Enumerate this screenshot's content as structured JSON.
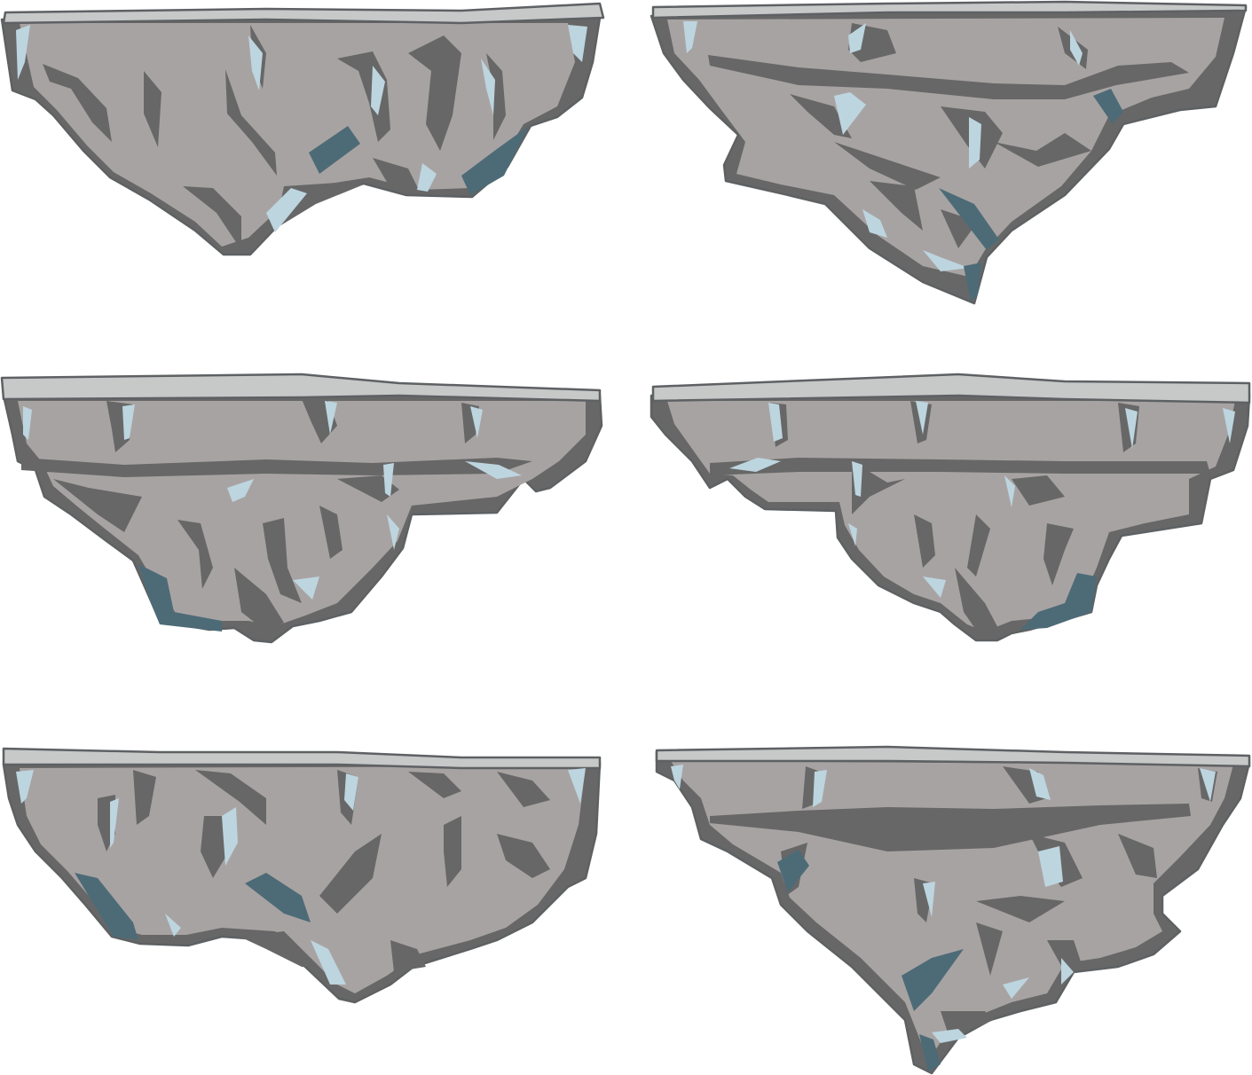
{
  "sheet": {
    "background": "#ffffff",
    "palette": {
      "rock_face": "#a8a3a3",
      "rock_shadow": "#676767",
      "top_slab": "#c7c8c8",
      "highlight": "#bdd5df",
      "deep_shadow": "#4d6b76",
      "outline": "#5e6163"
    },
    "platforms": [
      {
        "name": "floating-rock-platform-1",
        "icon": "floating-rock-icon"
      },
      {
        "name": "floating-rock-platform-2",
        "icon": "floating-rock-icon"
      },
      {
        "name": "floating-rock-platform-3",
        "icon": "floating-rock-icon"
      },
      {
        "name": "floating-rock-platform-4",
        "icon": "floating-rock-icon"
      },
      {
        "name": "floating-rock-platform-5",
        "icon": "floating-rock-icon"
      },
      {
        "name": "floating-rock-platform-6",
        "icon": "floating-rock-icon"
      }
    ]
  }
}
